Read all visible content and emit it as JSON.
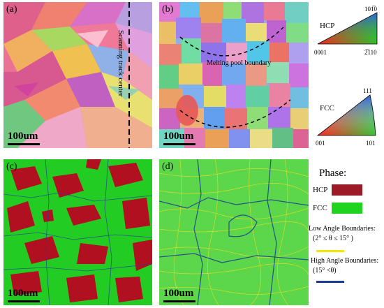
{
  "panels": {
    "a": {
      "label": "(a)",
      "scale": "100um",
      "note": "Scanning track center"
    },
    "b": {
      "label": "(b)",
      "scale": "100um",
      "note": "Melting pool boundary"
    },
    "c": {
      "label": "(c)",
      "scale": "100um"
    },
    "d": {
      "label": "(d)",
      "scale": "100um"
    }
  },
  "hcp_key": {
    "name": "HCP",
    "corner_origin": "0001",
    "corner_right": "2̅110",
    "corner_top": "101̅0"
  },
  "fcc_key": {
    "name": "FCC",
    "corner_origin": "001",
    "corner_right": "101",
    "corner_top": "111"
  },
  "legend": {
    "title": "Phase:",
    "hcp_label": "HCP",
    "fcc_label": "FCC",
    "low_title": "Low Angle Boundaries:",
    "low_range": "(2° ≤ θ ≤ 15° )",
    "high_title": "High Angle Boundaries:",
    "high_range": "(15° <θ)",
    "colors": {
      "hcp": "#9b1b27",
      "fcc": "#1fd31f",
      "low": "#f5e500",
      "high": "#1b3a96"
    }
  }
}
